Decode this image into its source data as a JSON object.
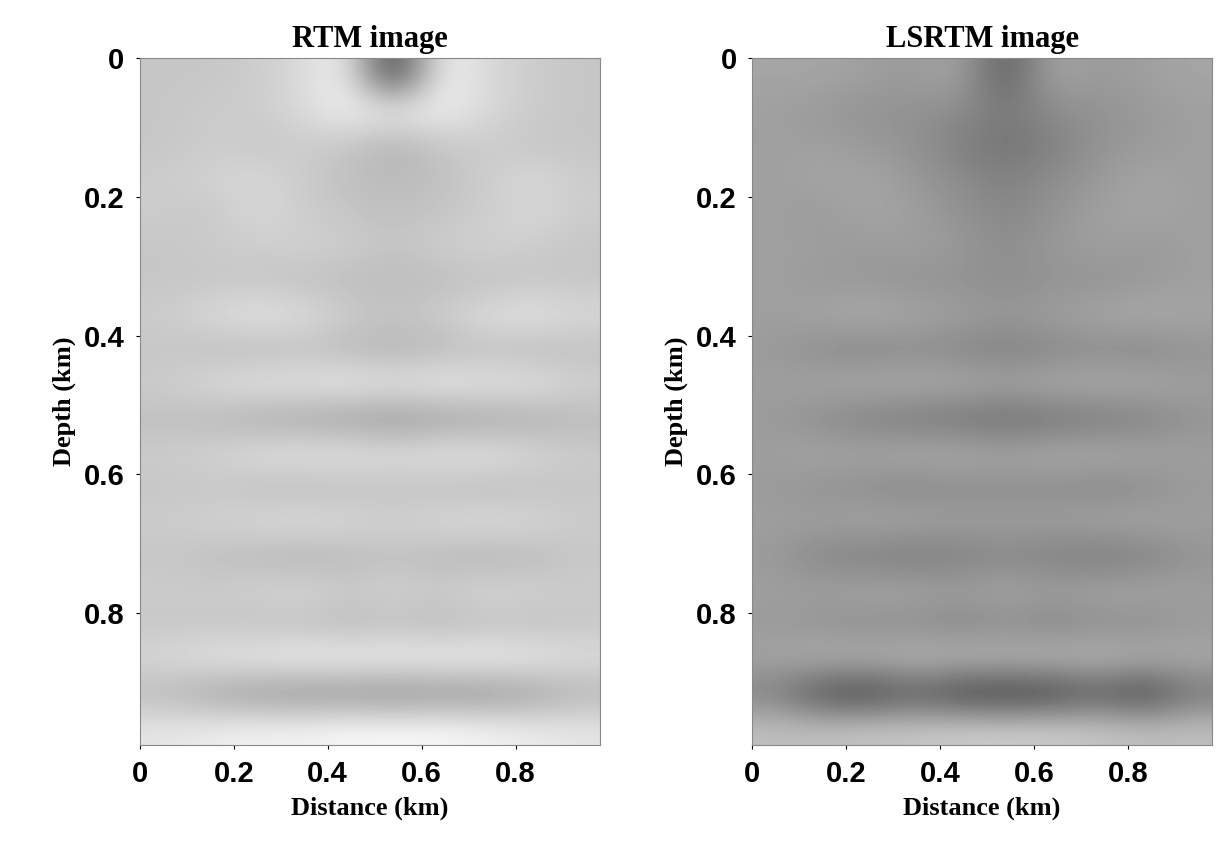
{
  "chart_data": [
    {
      "type": "heatmap",
      "title": "RTM image",
      "x_label": "Distance (km)",
      "y_label": "Depth (km)",
      "xlim": [
        0,
        0.98
      ],
      "ylim": [
        0.99,
        0
      ],
      "xticks": [
        0,
        0.2,
        0.4,
        0.6,
        0.8
      ],
      "yticks": [
        0,
        0.2,
        0.4,
        0.6,
        0.8
      ],
      "value_range": [
        -1,
        1
      ],
      "cells": [
        [
          0.55,
          0.55,
          0.6,
          0.7,
          0.9,
          -0.6,
          0.9,
          0.7,
          0.6,
          0.55
        ],
        [
          0.55,
          0.6,
          0.6,
          0.7,
          0.9,
          0.85,
          0.9,
          0.7,
          0.6,
          0.55
        ],
        [
          0.55,
          0.6,
          0.55,
          0.6,
          0.55,
          0.4,
          0.55,
          0.6,
          0.55,
          0.55
        ],
        [
          0.6,
          0.65,
          0.7,
          0.6,
          0.5,
          0.45,
          0.5,
          0.6,
          0.7,
          0.6
        ],
        [
          0.6,
          0.55,
          0.7,
          0.6,
          0.55,
          0.5,
          0.55,
          0.6,
          0.7,
          0.6
        ],
        [
          0.55,
          0.6,
          0.6,
          0.65,
          0.6,
          0.55,
          0.6,
          0.65,
          0.6,
          0.55
        ],
        [
          0.55,
          0.55,
          0.55,
          0.5,
          0.5,
          0.45,
          0.5,
          0.5,
          0.55,
          0.55
        ],
        [
          0.6,
          0.7,
          0.8,
          0.75,
          0.6,
          0.55,
          0.6,
          0.75,
          0.8,
          0.7
        ],
        [
          0.55,
          0.5,
          0.45,
          0.5,
          0.45,
          0.4,
          0.45,
          0.5,
          0.45,
          0.5
        ],
        [
          0.6,
          0.7,
          0.8,
          0.8,
          0.85,
          0.8,
          0.85,
          0.8,
          0.8,
          0.65
        ],
        [
          0.5,
          0.45,
          0.35,
          0.3,
          0.25,
          0.2,
          0.25,
          0.3,
          0.35,
          0.45
        ],
        [
          0.6,
          0.65,
          0.75,
          0.8,
          0.8,
          0.75,
          0.8,
          0.8,
          0.7,
          0.6
        ],
        [
          0.55,
          0.55,
          0.5,
          0.45,
          0.5,
          0.5,
          0.5,
          0.45,
          0.5,
          0.55
        ],
        [
          0.6,
          0.65,
          0.7,
          0.75,
          0.7,
          0.65,
          0.7,
          0.75,
          0.7,
          0.6
        ],
        [
          0.55,
          0.5,
          0.45,
          0.4,
          0.45,
          0.5,
          0.45,
          0.4,
          0.45,
          0.55
        ],
        [
          0.6,
          0.6,
          0.65,
          0.7,
          0.6,
          0.65,
          0.6,
          0.7,
          0.65,
          0.6
        ],
        [
          0.55,
          0.55,
          0.5,
          0.5,
          0.45,
          0.5,
          0.45,
          0.5,
          0.5,
          0.55
        ],
        [
          0.7,
          0.8,
          0.85,
          0.9,
          0.9,
          0.9,
          0.9,
          0.9,
          0.85,
          0.75
        ],
        [
          0.45,
          0.3,
          0.2,
          0.15,
          0.15,
          0.1,
          0.15,
          0.15,
          0.25,
          0.4
        ],
        [
          0.8,
          0.85,
          0.9,
          0.9,
          0.95,
          0.95,
          0.95,
          0.9,
          0.85,
          0.8
        ]
      ]
    },
    {
      "type": "heatmap",
      "title": "LSRTM image",
      "x_label": "Distance (km)",
      "y_label": "Depth (km)",
      "xlim": [
        0,
        0.98
      ],
      "ylim": [
        0.99,
        0
      ],
      "xticks": [
        0,
        0.2,
        0.4,
        0.6,
        0.8
      ],
      "yticks": [
        0,
        0.2,
        0.4,
        0.6,
        0.8
      ],
      "value_range": [
        -1,
        1
      ],
      "cells": [
        [
          0.3,
          0.3,
          0.25,
          0.2,
          0.3,
          -0.3,
          0.3,
          0.2,
          0.25,
          0.3
        ],
        [
          0.25,
          0.2,
          0.15,
          0.15,
          0.1,
          -0.05,
          0.1,
          0.15,
          0.2,
          0.25
        ],
        [
          0.25,
          0.25,
          0.2,
          0.15,
          0.0,
          -0.1,
          0.0,
          0.15,
          0.2,
          0.25
        ],
        [
          0.25,
          0.3,
          0.3,
          0.2,
          0.1,
          0.0,
          0.1,
          0.2,
          0.3,
          0.25
        ],
        [
          0.25,
          0.2,
          0.3,
          0.25,
          0.15,
          0.05,
          0.15,
          0.25,
          0.3,
          0.25
        ],
        [
          0.25,
          0.25,
          0.2,
          0.25,
          0.2,
          0.1,
          0.2,
          0.25,
          0.2,
          0.25
        ],
        [
          0.25,
          0.2,
          0.2,
          0.15,
          0.15,
          0.1,
          0.15,
          0.15,
          0.2,
          0.25
        ],
        [
          0.25,
          0.3,
          0.35,
          0.3,
          0.25,
          0.2,
          0.25,
          0.3,
          0.35,
          0.3
        ],
        [
          0.2,
          0.1,
          0.05,
          0.1,
          0.05,
          0.0,
          0.05,
          0.1,
          0.05,
          0.15
        ],
        [
          0.25,
          0.3,
          0.35,
          0.35,
          0.35,
          0.3,
          0.35,
          0.35,
          0.35,
          0.25
        ],
        [
          0.2,
          0.1,
          0.0,
          -0.05,
          -0.1,
          -0.15,
          -0.1,
          -0.05,
          0.0,
          0.15
        ],
        [
          0.25,
          0.3,
          0.3,
          0.35,
          0.35,
          0.3,
          0.35,
          0.35,
          0.3,
          0.25
        ],
        [
          0.2,
          0.15,
          0.1,
          0.05,
          0.1,
          0.1,
          0.1,
          0.05,
          0.1,
          0.2
        ],
        [
          0.25,
          0.25,
          0.3,
          0.3,
          0.25,
          0.25,
          0.25,
          0.3,
          0.3,
          0.25
        ],
        [
          0.2,
          0.05,
          0.0,
          -0.05,
          0.0,
          0.05,
          0.0,
          -0.05,
          0.0,
          0.15
        ],
        [
          0.25,
          0.25,
          0.3,
          0.3,
          0.25,
          0.3,
          0.25,
          0.3,
          0.3,
          0.25
        ],
        [
          0.2,
          0.15,
          0.1,
          0.1,
          0.05,
          0.1,
          0.05,
          0.1,
          0.1,
          0.2
        ],
        [
          0.3,
          0.4,
          0.4,
          0.45,
          0.45,
          0.45,
          0.45,
          0.45,
          0.4,
          0.35
        ],
        [
          0.0,
          -0.4,
          -0.5,
          -0.3,
          -0.5,
          -0.55,
          -0.5,
          -0.3,
          -0.5,
          -0.1
        ],
        [
          0.5,
          0.5,
          0.55,
          0.55,
          0.6,
          0.6,
          0.6,
          0.55,
          0.5,
          0.5
        ]
      ]
    }
  ]
}
